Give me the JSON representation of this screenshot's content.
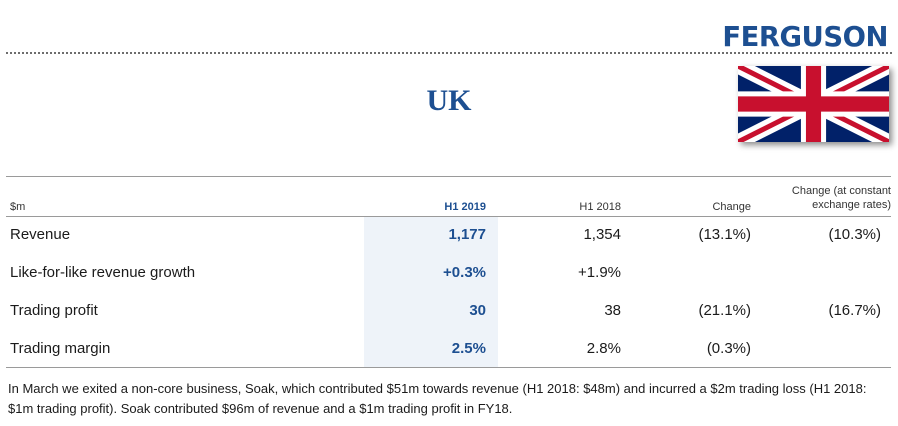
{
  "header": {
    "logo_text": "FERGUSON",
    "title": "UK",
    "flag_icon": "union-jack-flag"
  },
  "table": {
    "columns": {
      "label": "$m",
      "h1_2019": "H1 2019",
      "h1_2018": "H1 2018",
      "change": "Change",
      "change_constant": "Change (at constant exchange rates)"
    },
    "rows": [
      {
        "label": "Revenue",
        "h1_2019": "1,177",
        "h1_2018": "1,354",
        "change": "(13.1%)",
        "change_constant": "(10.3%)"
      },
      {
        "label": "Like-for-like revenue growth",
        "h1_2019": "+0.3%",
        "h1_2018": "+1.9%",
        "change": "",
        "change_constant": ""
      },
      {
        "label": "Trading profit",
        "h1_2019": "30",
        "h1_2018": "38",
        "change": "(21.1%)",
        "change_constant": "(16.7%)"
      },
      {
        "label": "Trading margin",
        "h1_2019": "2.5%",
        "h1_2018": "2.8%",
        "change": "(0.3%)",
        "change_constant": ""
      }
    ]
  },
  "footnote": "In March we exited a non-core business, Soak, which contributed $51m towards revenue (H1 2018: $48m) and incurred a $2m trading loss (H1 2018: $1m trading profit). Soak contributed $96m of revenue and a $1m trading profit in FY18.",
  "colors": {
    "brand_blue": "#1d4f91",
    "highlight": "#eef3f9",
    "flag_blue": "#012169",
    "flag_red": "#c8102e"
  }
}
